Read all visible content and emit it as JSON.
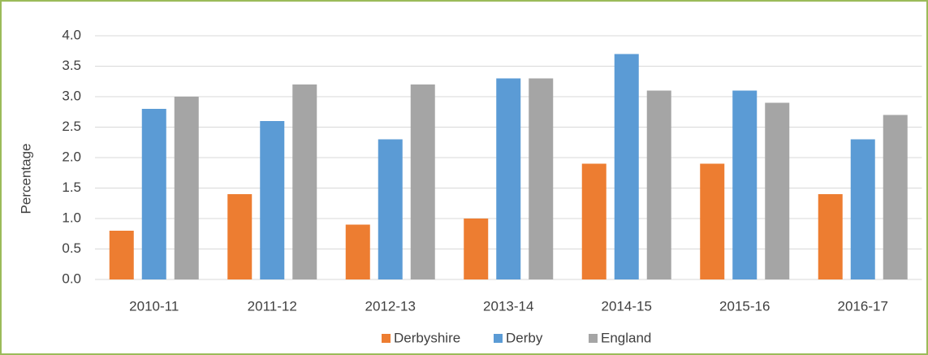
{
  "chart_data": {
    "type": "bar",
    "ylabel": "Percentage",
    "categories": [
      "2010-11",
      "2011-12",
      "2012-13",
      "2013-14",
      "2014-15",
      "2015-16",
      "2016-17"
    ],
    "series": [
      {
        "name": "Derbyshire",
        "color": "#ed7d31",
        "values": [
          0.8,
          1.4,
          0.9,
          1.0,
          1.9,
          1.9,
          1.4
        ]
      },
      {
        "name": "Derby",
        "color": "#5b9bd5",
        "values": [
          2.8,
          2.6,
          2.3,
          3.3,
          3.7,
          3.1,
          2.3
        ]
      },
      {
        "name": "England",
        "color": "#a5a5a5",
        "values": [
          3.0,
          3.2,
          3.2,
          3.3,
          3.1,
          2.9,
          2.7
        ]
      }
    ],
    "ylim": [
      0,
      4
    ],
    "yticks": [
      {
        "value": 0,
        "label": "0.0"
      },
      0.5,
      {
        "value": 1,
        "label": "1.0"
      },
      1.5,
      {
        "value": 2,
        "label": "2.0"
      },
      2.5,
      {
        "value": 3,
        "label": "3.0"
      },
      3.5,
      {
        "value": 4,
        "label": "4.0"
      }
    ],
    "grid": true,
    "legend": "bottom"
  }
}
